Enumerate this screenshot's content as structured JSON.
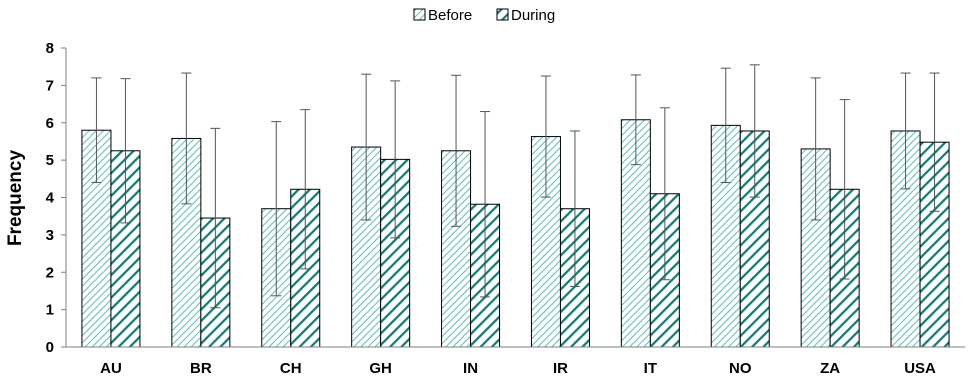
{
  "chart_data": {
    "type": "bar",
    "title": "",
    "xlabel": "",
    "ylabel": "Frequency",
    "ylim": [
      0,
      8
    ],
    "yticks": [
      0,
      1,
      2,
      3,
      4,
      5,
      6,
      7,
      8
    ],
    "grid": false,
    "legend_position": "top-center",
    "categories": [
      "AU",
      "BR",
      "CH",
      "GH",
      "IN",
      "IR",
      "IT",
      "NO",
      "ZA",
      "USA"
    ],
    "series": [
      {
        "name": "Before",
        "values": [
          5.8,
          5.58,
          3.7,
          5.35,
          5.25,
          5.63,
          6.08,
          5.93,
          5.3,
          5.78
        ],
        "error": [
          1.4,
          1.75,
          2.33,
          1.95,
          2.02,
          1.62,
          1.2,
          1.53,
          1.9,
          1.55
        ],
        "color": "#5bbfb8",
        "pattern": "fine-diagonal"
      },
      {
        "name": "During",
        "values": [
          5.25,
          3.45,
          4.22,
          5.02,
          3.82,
          3.7,
          4.1,
          5.78,
          4.22,
          5.48
        ],
        "error": [
          1.93,
          2.4,
          2.13,
          2.1,
          2.48,
          2.08,
          2.3,
          1.77,
          2.4,
          1.85
        ],
        "color": "#0e7c79",
        "pattern": "bold-diagonal"
      }
    ]
  }
}
